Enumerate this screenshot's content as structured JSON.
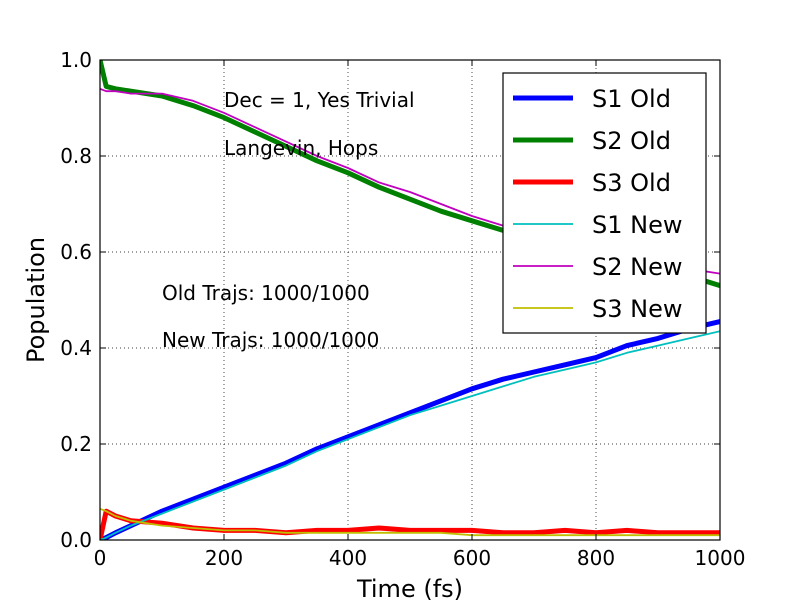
{
  "chart_data": {
    "type": "line",
    "title": "",
    "xlabel": "Time (fs)",
    "ylabel": "Population",
    "xlim": [
      0,
      1000
    ],
    "ylim": [
      0,
      1.0
    ],
    "xticks": [
      "0",
      "200",
      "400",
      "600",
      "800",
      "1000"
    ],
    "yticks": [
      "0.0",
      "0.2",
      "0.4",
      "0.6",
      "0.8",
      "1.0"
    ],
    "grid": true,
    "legend_position": "top-right",
    "annotations": [
      "Dec = 1, Yes Trivial",
      "Langevin, Hops",
      "Old Trajs: 1000/1000",
      "New Trajs: 1000/1000"
    ],
    "x": [
      0,
      10,
      25,
      50,
      100,
      150,
      200,
      250,
      300,
      350,
      400,
      450,
      500,
      550,
      600,
      650,
      700,
      750,
      800,
      850,
      900,
      950,
      1000
    ],
    "series": [
      {
        "name": "S1 Old",
        "color": "#0000ff",
        "width": 5,
        "values": [
          0.0,
          0.005,
          0.015,
          0.03,
          0.06,
          0.085,
          0.11,
          0.135,
          0.16,
          0.19,
          0.215,
          0.24,
          0.265,
          0.29,
          0.315,
          0.335,
          0.35,
          0.365,
          0.38,
          0.405,
          0.42,
          0.44,
          0.455
        ]
      },
      {
        "name": "S2 Old",
        "color": "#008000",
        "width": 5,
        "values": [
          1.0,
          0.945,
          0.94,
          0.935,
          0.925,
          0.905,
          0.88,
          0.85,
          0.82,
          0.79,
          0.765,
          0.735,
          0.71,
          0.685,
          0.665,
          0.645,
          0.63,
          0.615,
          0.6,
          0.585,
          0.57,
          0.55,
          0.53
        ]
      },
      {
        "name": "S3 Old",
        "color": "#ff0000",
        "width": 5,
        "values": [
          0.0,
          0.06,
          0.05,
          0.04,
          0.035,
          0.025,
          0.02,
          0.02,
          0.015,
          0.02,
          0.02,
          0.025,
          0.02,
          0.02,
          0.02,
          0.015,
          0.015,
          0.02,
          0.015,
          0.02,
          0.015,
          0.015,
          0.015
        ]
      },
      {
        "name": "S1 New",
        "color": "#00bfbf",
        "width": 1.8,
        "values": [
          0.0,
          0.005,
          0.015,
          0.03,
          0.055,
          0.08,
          0.105,
          0.13,
          0.155,
          0.185,
          0.21,
          0.235,
          0.26,
          0.28,
          0.3,
          0.32,
          0.34,
          0.355,
          0.37,
          0.39,
          0.405,
          0.42,
          0.435
        ]
      },
      {
        "name": "S2 New",
        "color": "#bf00bf",
        "width": 1.8,
        "values": [
          0.94,
          0.935,
          0.935,
          0.93,
          0.93,
          0.915,
          0.89,
          0.86,
          0.83,
          0.8,
          0.775,
          0.745,
          0.725,
          0.7,
          0.675,
          0.655,
          0.645,
          0.625,
          0.605,
          0.595,
          0.58,
          0.565,
          0.555
        ]
      },
      {
        "name": "S3 New",
        "color": "#bfbf00",
        "width": 1.8,
        "values": [
          0.065,
          0.06,
          0.05,
          0.04,
          0.03,
          0.025,
          0.02,
          0.02,
          0.015,
          0.015,
          0.015,
          0.015,
          0.015,
          0.015,
          0.01,
          0.01,
          0.01,
          0.01,
          0.01,
          0.01,
          0.01,
          0.01,
          0.01
        ]
      }
    ]
  }
}
